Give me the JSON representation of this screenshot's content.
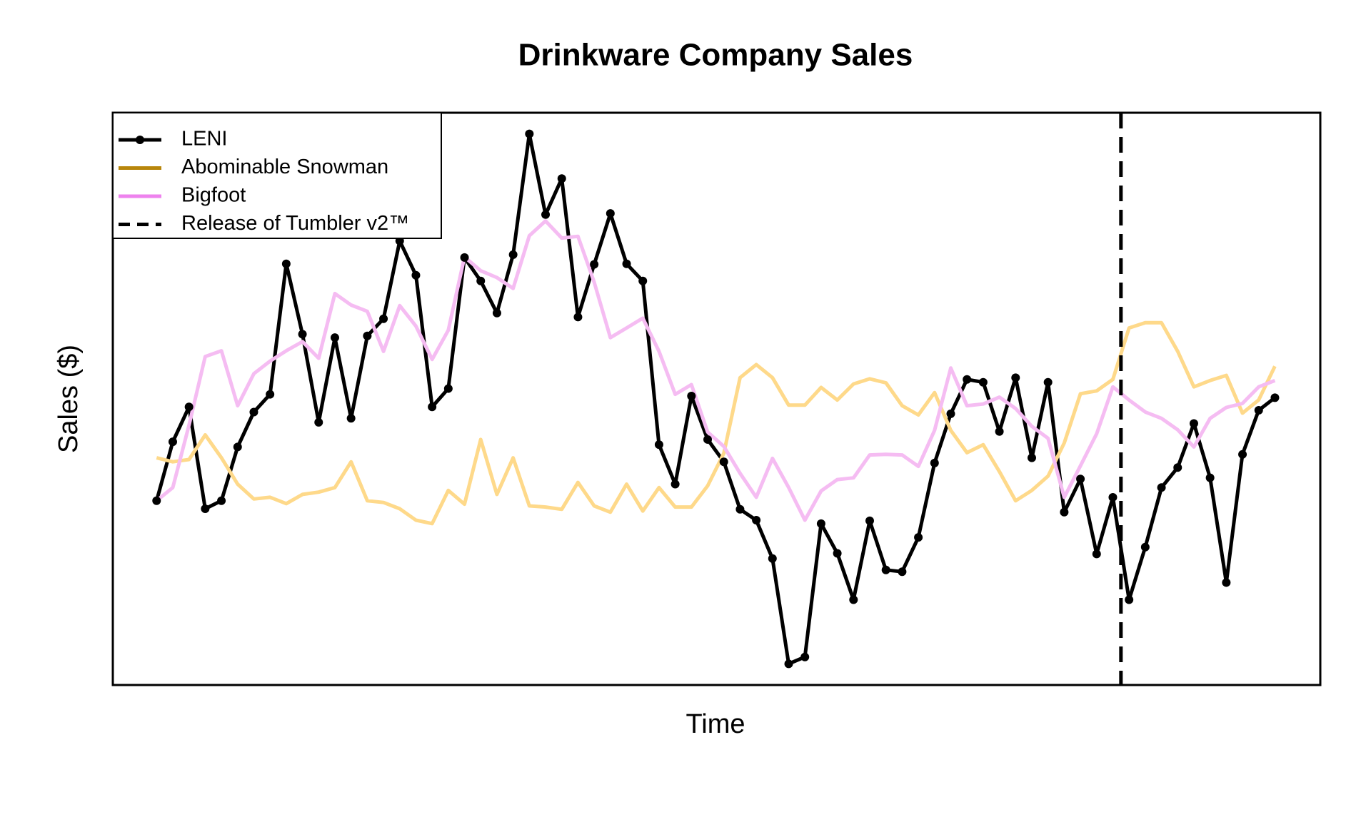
{
  "chart_data": {
    "type": "line",
    "title": "Drinkware Company Sales",
    "xlabel": "Time",
    "ylabel": "Sales ($)",
    "xlim": [
      -2.7,
      71.8
    ],
    "ylim": [
      0,
      100
    ],
    "x": [
      0,
      1,
      2,
      3,
      4,
      5,
      6,
      7,
      8,
      9,
      10,
      11,
      12,
      13,
      14,
      15,
      16,
      17,
      18,
      19,
      20,
      21,
      22,
      23,
      24,
      25,
      26,
      27,
      28,
      29,
      30,
      31,
      32,
      33,
      34,
      35,
      36,
      37,
      38,
      39,
      40,
      41,
      42,
      43,
      44,
      45,
      46,
      47,
      48,
      49,
      50,
      51,
      52,
      53,
      54,
      55,
      56,
      57,
      58,
      59,
      60,
      61,
      62,
      63,
      64,
      65,
      66,
      67,
      68,
      69
    ],
    "legend": "top-left",
    "series": [
      {
        "name": "LENI",
        "color": "#000000",
        "plot_color": "#000000",
        "markers": true,
        "values": [
          32.2,
          42.5,
          48.6,
          30.8,
          32.2,
          41.6,
          47.7,
          50.8,
          73.6,
          61.3,
          45.9,
          60.7,
          46.6,
          61.0,
          64.0,
          77.6,
          71.6,
          48.6,
          51.8,
          74.7,
          70.6,
          65.0,
          75.2,
          96.3,
          82.2,
          88.5,
          64.3,
          73.5,
          82.4,
          73.6,
          70.6,
          42.0,
          35.1,
          50.5,
          42.9,
          39.0,
          30.7,
          28.8,
          22.1,
          3.7,
          4.9,
          28.2,
          23.0,
          14.9,
          28.7,
          20.1,
          19.8,
          25.8,
          38.8,
          47.4,
          53.4,
          52.9,
          44.3,
          53.7,
          39.7,
          52.9,
          30.2,
          36.0,
          22.9,
          32.8,
          14.9,
          24.1,
          34.5,
          38.0,
          45.7,
          36.2,
          17.9,
          40.3,
          48.0,
          50.2
        ]
      },
      {
        "name": "Abominable Snowman",
        "color": "#b8860b",
        "plot_color": "#fed98a",
        "markers": false,
        "values": [
          39.7,
          39.0,
          39.4,
          43.7,
          39.7,
          35.1,
          32.5,
          32.8,
          31.7,
          33.3,
          33.7,
          34.5,
          39.0,
          32.2,
          31.9,
          30.8,
          28.8,
          28.2,
          34.0,
          31.6,
          42.9,
          33.3,
          39.7,
          31.3,
          31.1,
          30.7,
          35.4,
          31.3,
          30.2,
          35.1,
          30.4,
          34.5,
          31.1,
          31.1,
          34.8,
          40.5,
          53.7,
          56.0,
          53.7,
          48.9,
          48.9,
          52.0,
          49.8,
          52.6,
          53.5,
          52.8,
          48.8,
          47.2,
          51.1,
          44.5,
          40.6,
          42.0,
          37.3,
          32.2,
          34.0,
          36.5,
          42.3,
          50.9,
          51.4,
          53.4,
          62.4,
          63.3,
          63.3,
          58.3,
          52.1,
          53.2,
          54.1,
          47.5,
          49.8,
          55.7
        ]
      },
      {
        "name": "Bigfoot",
        "color": "#ee82ee",
        "plot_color": "#f5bcf2",
        "markers": false,
        "values": [
          32.2,
          34.5,
          45.4,
          57.4,
          58.4,
          48.8,
          54.4,
          56.6,
          58.4,
          60.0,
          57.1,
          68.4,
          66.4,
          65.3,
          58.3,
          66.3,
          62.7,
          56.9,
          62.0,
          74.8,
          72.4,
          71.2,
          69.3,
          78.5,
          81.1,
          78.1,
          78.4,
          70.4,
          60.7,
          62.4,
          64.1,
          58.3,
          50.8,
          52.5,
          44.2,
          41.7,
          37.0,
          32.8,
          39.6,
          34.5,
          28.8,
          33.9,
          35.9,
          36.2,
          40.2,
          40.3,
          40.2,
          38.2,
          44.5,
          55.4,
          48.8,
          49.1,
          50.3,
          48.3,
          45.2,
          43.1,
          32.8,
          38.3,
          43.9,
          52.1,
          49.8,
          47.7,
          46.6,
          44.6,
          41.6,
          46.6,
          48.5,
          49.2,
          52.1,
          53.2
        ]
      }
    ],
    "vline": {
      "name": "Release of Tumbler v2™",
      "x": 59.5,
      "color": "#000000"
    }
  }
}
